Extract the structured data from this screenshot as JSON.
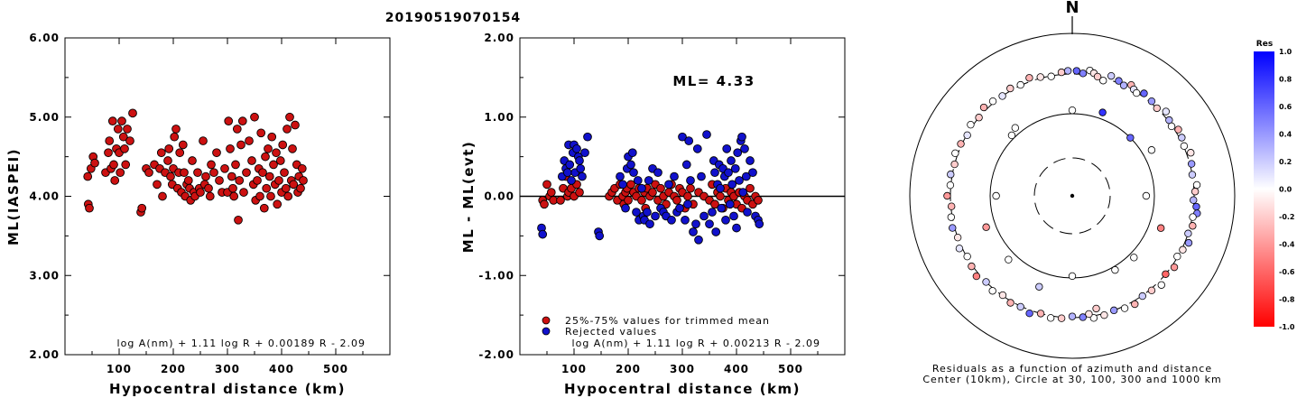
{
  "title": "20190519070154",
  "colors": {
    "red": "#cc1111",
    "blue": "#1111cc",
    "outline": "#000000"
  },
  "chart_data": [
    {
      "type": "scatter",
      "ylabel": "ML(IASPEI)",
      "xlabel": "Hypocentral distance (km)",
      "xlim": [
        0,
        600
      ],
      "ylim": [
        2.0,
        6.0
      ],
      "x_ticks": [
        "100",
        "200",
        "300",
        "400",
        "500"
      ],
      "y_ticks": [
        "2.00",
        "3.00",
        "4.00",
        "5.00",
        "6.00"
      ],
      "formula": "log A(nm) + 1.11 log R + 0.00189 R - 2.09",
      "series": [
        {
          "color": "#cc1111",
          "x": [
            42,
            43,
            45,
            48,
            52,
            55,
            75,
            80,
            82,
            85,
            88,
            90,
            92,
            95,
            98,
            100,
            102,
            105,
            108,
            110,
            112,
            115,
            120,
            125,
            140,
            142,
            150,
            155,
            165,
            170,
            175,
            178,
            180,
            185,
            190,
            192,
            195,
            198,
            200,
            202,
            205,
            208,
            210,
            212,
            215,
            218,
            220,
            222,
            225,
            228,
            230,
            232,
            235,
            238,
            240,
            245,
            248,
            250,
            255,
            258,
            260,
            265,
            268,
            270,
            275,
            280,
            285,
            290,
            295,
            300,
            302,
            305,
            308,
            310,
            312,
            315,
            318,
            320,
            322,
            325,
            328,
            330,
            335,
            340,
            345,
            348,
            350,
            352,
            355,
            358,
            360,
            362,
            365,
            368,
            370,
            372,
            375,
            378,
            380,
            382,
            385,
            388,
            390,
            392,
            395,
            398,
            400,
            402,
            405,
            408,
            410,
            412,
            415,
            418,
            420,
            422,
            425,
            428,
            430,
            432,
            435,
            438,
            440
          ],
          "y": [
            4.25,
            3.9,
            3.85,
            4.35,
            4.5,
            4.42,
            4.3,
            4.55,
            4.7,
            4.35,
            4.95,
            4.4,
            4.2,
            4.6,
            4.85,
            4.55,
            4.3,
            4.95,
            4.75,
            4.6,
            4.4,
            4.85,
            4.7,
            5.05,
            3.8,
            3.85,
            4.35,
            4.3,
            4.4,
            4.15,
            4.35,
            4.55,
            4.0,
            4.3,
            4.45,
            4.6,
            4.25,
            4.15,
            4.35,
            4.75,
            4.85,
            4.1,
            4.3,
            4.55,
            4.05,
            4.65,
            4.3,
            4.0,
            4.15,
            4.2,
            4.1,
            3.95,
            4.45,
            4.05,
            4.0,
            4.3,
            4.1,
            4.05,
            4.7,
            4.15,
            4.25,
            4.1,
            4.0,
            4.4,
            4.3,
            4.55,
            4.2,
            4.05,
            4.35,
            4.05,
            4.95,
            4.6,
            4.25,
            4.1,
            4.0,
            4.4,
            4.85,
            3.7,
            4.2,
            4.65,
            4.95,
            4.05,
            4.3,
            4.7,
            4.45,
            4.15,
            5.0,
            3.95,
            4.2,
            4.35,
            4.0,
            4.8,
            4.3,
            3.85,
            4.5,
            4.1,
            4.6,
            4.25,
            4.0,
            4.75,
            4.4,
            4.15,
            4.55,
            3.9,
            4.2,
            4.45,
            4.05,
            4.65,
            4.3,
            4.1,
            4.85,
            4.0,
            5.0,
            4.2,
            4.6,
            4.15,
            4.9,
            4.4,
            4.05,
            4.25,
            4.1,
            4.35,
            4.2
          ]
        }
      ]
    },
    {
      "type": "scatter",
      "ylabel": "ML - ML(evt)",
      "xlabel": "Hypocentral distance (km)",
      "xlim": [
        0,
        600
      ],
      "ylim": [
        -2.0,
        2.0
      ],
      "x_ticks": [
        "100",
        "200",
        "300",
        "400",
        "500"
      ],
      "y_ticks": [
        "-2.00",
        "-1.00",
        "0.00",
        "1.00",
        "2.00"
      ],
      "annotation": "ML= 4.33",
      "reference_line": 0.0,
      "formula": "log A(nm) + 1.11 log R + 0.00213 R - 2.09",
      "legend": [
        {
          "label": "25%-75% values for trimmed mean",
          "color": "#cc1111"
        },
        {
          "label": "Rejected values",
          "color": "#1111cc"
        }
      ],
      "series": [
        {
          "name": "25%-75% values for trimmed mean",
          "color": "#cc1111",
          "x": [
            42,
            45,
            50,
            55,
            58,
            62,
            75,
            80,
            85,
            88,
            90,
            95,
            100,
            105,
            110,
            165,
            170,
            175,
            180,
            185,
            190,
            192,
            195,
            198,
            200,
            205,
            210,
            215,
            220,
            225,
            230,
            232,
            235,
            240,
            245,
            250,
            255,
            260,
            265,
            270,
            275,
            280,
            285,
            290,
            295,
            300,
            305,
            310,
            315,
            320,
            330,
            340,
            350,
            355,
            360,
            365,
            370,
            375,
            380,
            385,
            390,
            395,
            400,
            405,
            410,
            415,
            420,
            425,
            430,
            435,
            440
          ],
          "y": [
            -0.05,
            -0.1,
            0.15,
            0.0,
            0.05,
            -0.05,
            -0.05,
            0.1,
            0.25,
            0.0,
            0.05,
            0.1,
            0.0,
            0.15,
            0.05,
            0.0,
            0.05,
            0.1,
            -0.05,
            0.15,
            0.0,
            -0.1,
            0.05,
            0.1,
            -0.05,
            0.15,
            0.05,
            0.0,
            0.1,
            -0.05,
            0.05,
            -0.15,
            0.1,
            0.0,
            0.05,
            0.15,
            -0.05,
            0.1,
            0.0,
            -0.1,
            0.05,
            0.15,
            0.0,
            -0.05,
            0.1,
            0.05,
            -0.15,
            0.0,
            0.1,
            -0.1,
            0.05,
            0.0,
            -0.05,
            0.15,
            -0.1,
            0.05,
            0.0,
            -0.15,
            0.1,
            -0.05,
            0.05,
            0.0,
            -0.1,
            0.05,
            -0.15,
            0.0,
            -0.05,
            0.1,
            -0.1,
            0.0,
            -0.05
          ]
        },
        {
          "name": "Rejected values",
          "color": "#1111cc",
          "x": [
            40,
            42,
            78,
            82,
            85,
            88,
            90,
            92,
            95,
            98,
            100,
            102,
            105,
            108,
            110,
            112,
            115,
            120,
            125,
            145,
            147,
            185,
            190,
            195,
            198,
            200,
            205,
            208,
            210,
            215,
            218,
            220,
            225,
            228,
            230,
            235,
            238,
            240,
            245,
            250,
            255,
            260,
            265,
            270,
            275,
            280,
            285,
            290,
            295,
            300,
            305,
            308,
            310,
            312,
            315,
            320,
            325,
            328,
            330,
            335,
            340,
            345,
            350,
            355,
            358,
            360,
            362,
            365,
            368,
            370,
            372,
            375,
            378,
            380,
            382,
            385,
            388,
            390,
            392,
            395,
            398,
            400,
            402,
            405,
            408,
            410,
            412,
            415,
            418,
            420,
            425,
            430,
            435,
            440,
            442
          ],
          "y": [
            -0.4,
            -0.48,
            0.25,
            0.45,
            0.35,
            0.3,
            0.65,
            0.4,
            0.2,
            0.55,
            0.65,
            0.3,
            0.6,
            0.5,
            0.45,
            0.35,
            0.25,
            0.55,
            0.75,
            -0.45,
            -0.5,
            0.25,
            0.15,
            -0.15,
            0.35,
            0.5,
            0.4,
            0.55,
            0.3,
            -0.2,
            0.2,
            -0.3,
            0.1,
            -0.25,
            -0.3,
            -0.2,
            0.2,
            -0.35,
            0.35,
            -0.25,
            0.3,
            -0.15,
            -0.2,
            -0.25,
            0.15,
            -0.3,
            0.25,
            -0.2,
            -0.15,
            0.75,
            -0.3,
            0.4,
            -0.1,
            0.7,
            0.2,
            -0.45,
            -0.35,
            0.6,
            -0.55,
            0.25,
            -0.25,
            0.78,
            -0.35,
            -0.2,
            0.45,
            0.3,
            -0.45,
            0.15,
            0.4,
            0.1,
            -0.15,
            0.35,
            0.25,
            -0.3,
            0.6,
            0.3,
            -0.1,
            0.45,
            0.15,
            -0.25,
            0.35,
            -0.4,
            0.55,
            0.2,
            0.7,
            0.75,
            0.05,
            0.6,
            0.25,
            -0.2,
            0.45,
            0.3,
            -0.25,
            -0.3,
            -0.35
          ]
        }
      ]
    },
    {
      "type": "scatter",
      "subtype": "polar residual map",
      "north_label": "N",
      "caption_lines": [
        "Residuals as a function of azimuth and distance",
        "Center (10km), Circle at 30, 100, 300 and 1000 km"
      ],
      "rings_km": [
        30,
        100,
        300,
        1000
      ],
      "colorbar": {
        "title": "Res",
        "ticks": [
          "1.0",
          "0.8",
          "0.6",
          "0.4",
          "0.2",
          "0.0",
          "-0.2",
          "-0.4",
          "-0.6",
          "-0.8",
          "-1.0"
        ],
        "min": -1.0,
        "max": 1.0,
        "colors": [
          "#0000ff",
          "#ffffff",
          "#ff0000"
        ]
      },
      "stations": {
        "azimuth_deg": [
          2,
          5,
          8,
          10,
          12,
          15,
          18,
          22,
          25,
          28,
          30,
          32,
          35,
          40,
          44,
          48,
          52,
          55,
          58,
          62,
          66,
          70,
          75,
          80,
          85,
          88,
          92,
          95,
          98,
          100,
          104,
          108,
          112,
          116,
          120,
          125,
          130,
          135,
          140,
          145,
          150,
          155,
          160,
          165,
          168,
          170,
          172,
          175,
          180,
          185,
          190,
          195,
          200,
          205,
          210,
          215,
          220,
          225,
          230,
          235,
          240,
          245,
          250,
          255,
          260,
          265,
          270,
          275,
          280,
          285,
          290,
          295,
          300,
          305,
          310,
          315,
          320,
          325,
          330,
          335,
          340,
          345,
          350,
          355,
          358,
          20,
          60,
          110,
          150,
          200,
          250,
          320,
          45,
          135,
          225,
          315,
          90,
          270,
          180,
          0
        ],
        "distance_km": [
          330,
          310,
          345,
          325,
          300,
          280,
          340,
          320,
          300,
          335,
          310,
          295,
          330,
          315,
          300,
          340,
          310,
          295,
          330,
          320,
          305,
          340,
          315,
          300,
          330,
          310,
          295,
          325,
          340,
          305,
          320,
          300,
          335,
          310,
          295,
          325,
          300,
          340,
          315,
          305,
          330,
          320,
          300,
          315,
          250,
          320,
          280,
          300,
          290,
          310,
          320,
          300,
          330,
          305,
          315,
          295,
          320,
          300,
          330,
          310,
          295,
          325,
          300,
          320,
          310,
          295,
          330,
          305,
          315,
          300,
          325,
          310,
          295,
          320,
          300,
          330,
          315,
          300,
          320,
          305,
          335,
          310,
          295,
          320,
          330,
          120,
          130,
          140,
          110,
          150,
          130,
          120,
          100,
          115,
          125,
          110,
          80,
          85,
          95,
          110
        ],
        "residual": [
          0.6,
          0.5,
          0.0,
          -0.1,
          -0.2,
          0.0,
          0.2,
          0.5,
          0.3,
          -0.3,
          0.1,
          0.0,
          0.6,
          0.4,
          -0.2,
          0.1,
          0.3,
          0.0,
          -0.3,
          0.2,
          0.0,
          -0.1,
          0.4,
          0.2,
          0.0,
          -0.2,
          0.3,
          0.6,
          0.5,
          0.0,
          -0.3,
          0.2,
          0.4,
          -0.1,
          0.0,
          -0.4,
          -0.6,
          0.0,
          -0.2,
          0.2,
          -0.3,
          0.0,
          0.4,
          -0.1,
          -0.2,
          0.0,
          -0.1,
          0.5,
          0.3,
          -0.2,
          0.0,
          -0.3,
          0.6,
          0.2,
          -0.3,
          -0.1,
          0.0,
          0.2,
          -0.5,
          -0.3,
          0.0,
          0.1,
          -0.1,
          0.4,
          0.0,
          -0.3,
          -0.4,
          0.0,
          0.2,
          -0.2,
          0.0,
          -0.3,
          0.1,
          0.0,
          -0.2,
          -0.3,
          0.0,
          0.1,
          -0.2,
          0.0,
          -0.3,
          -0.1,
          0.0,
          -0.2,
          0.3,
          0.8,
          0.0,
          -0.5,
          0.0,
          0.2,
          -0.4,
          0.0,
          0.6,
          0.0,
          0.0,
          0.0,
          0.0,
          0.0,
          0.0,
          0.0
        ]
      }
    }
  ]
}
